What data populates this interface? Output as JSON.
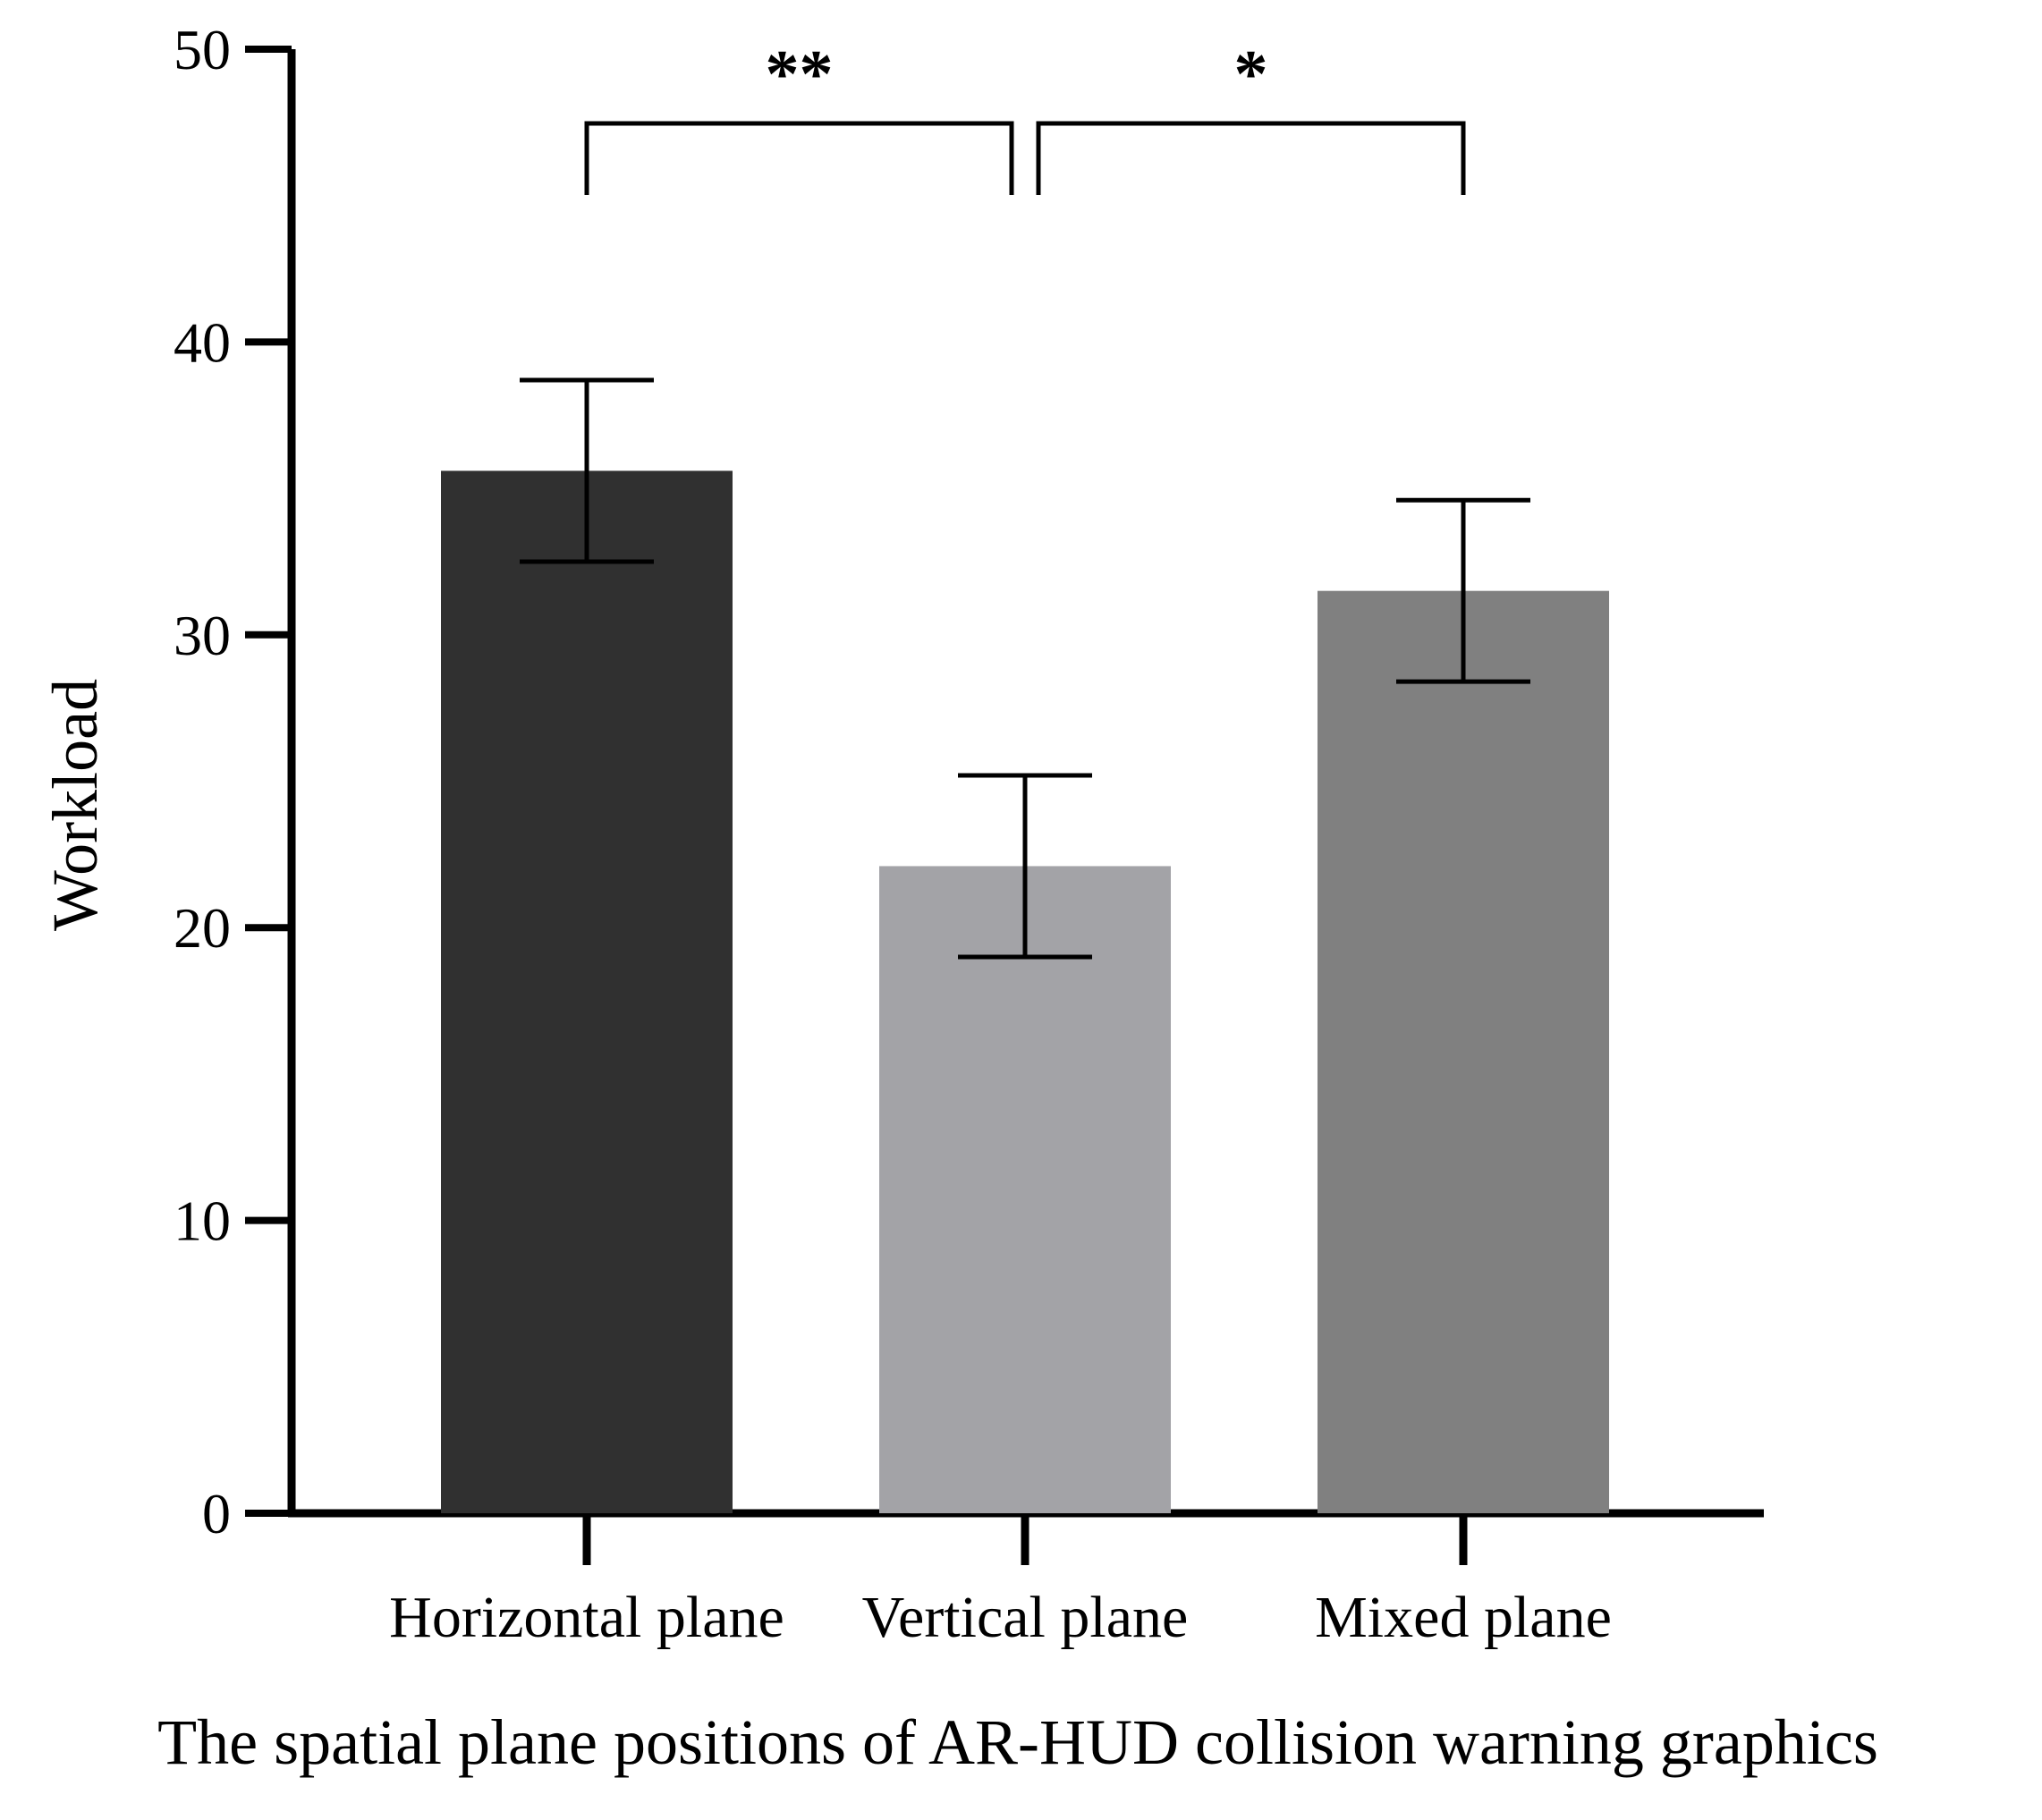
{
  "chart_data": {
    "type": "bar",
    "title": "",
    "xlabel": "The spatial plane positions of AR-HUD collision warning graphics",
    "ylabel": "Workload",
    "categories": [
      "Horizontal plane",
      "Vertical plane",
      "Mixed plane"
    ],
    "values": [
      35.6,
      22.1,
      31.5
    ],
    "error": [
      3.1,
      3.1,
      3.1
    ],
    "colors": [
      "#303030",
      "#a3a3a7",
      "#808080"
    ],
    "ylim": [
      0,
      50
    ],
    "yticks": [
      "0",
      "10",
      "20",
      "30",
      "40",
      "50"
    ],
    "grid": false,
    "legend": "none",
    "significance": [
      {
        "from": 0,
        "to": 1,
        "label": "**"
      },
      {
        "from": 1,
        "to": 2,
        "label": "*"
      }
    ]
  }
}
